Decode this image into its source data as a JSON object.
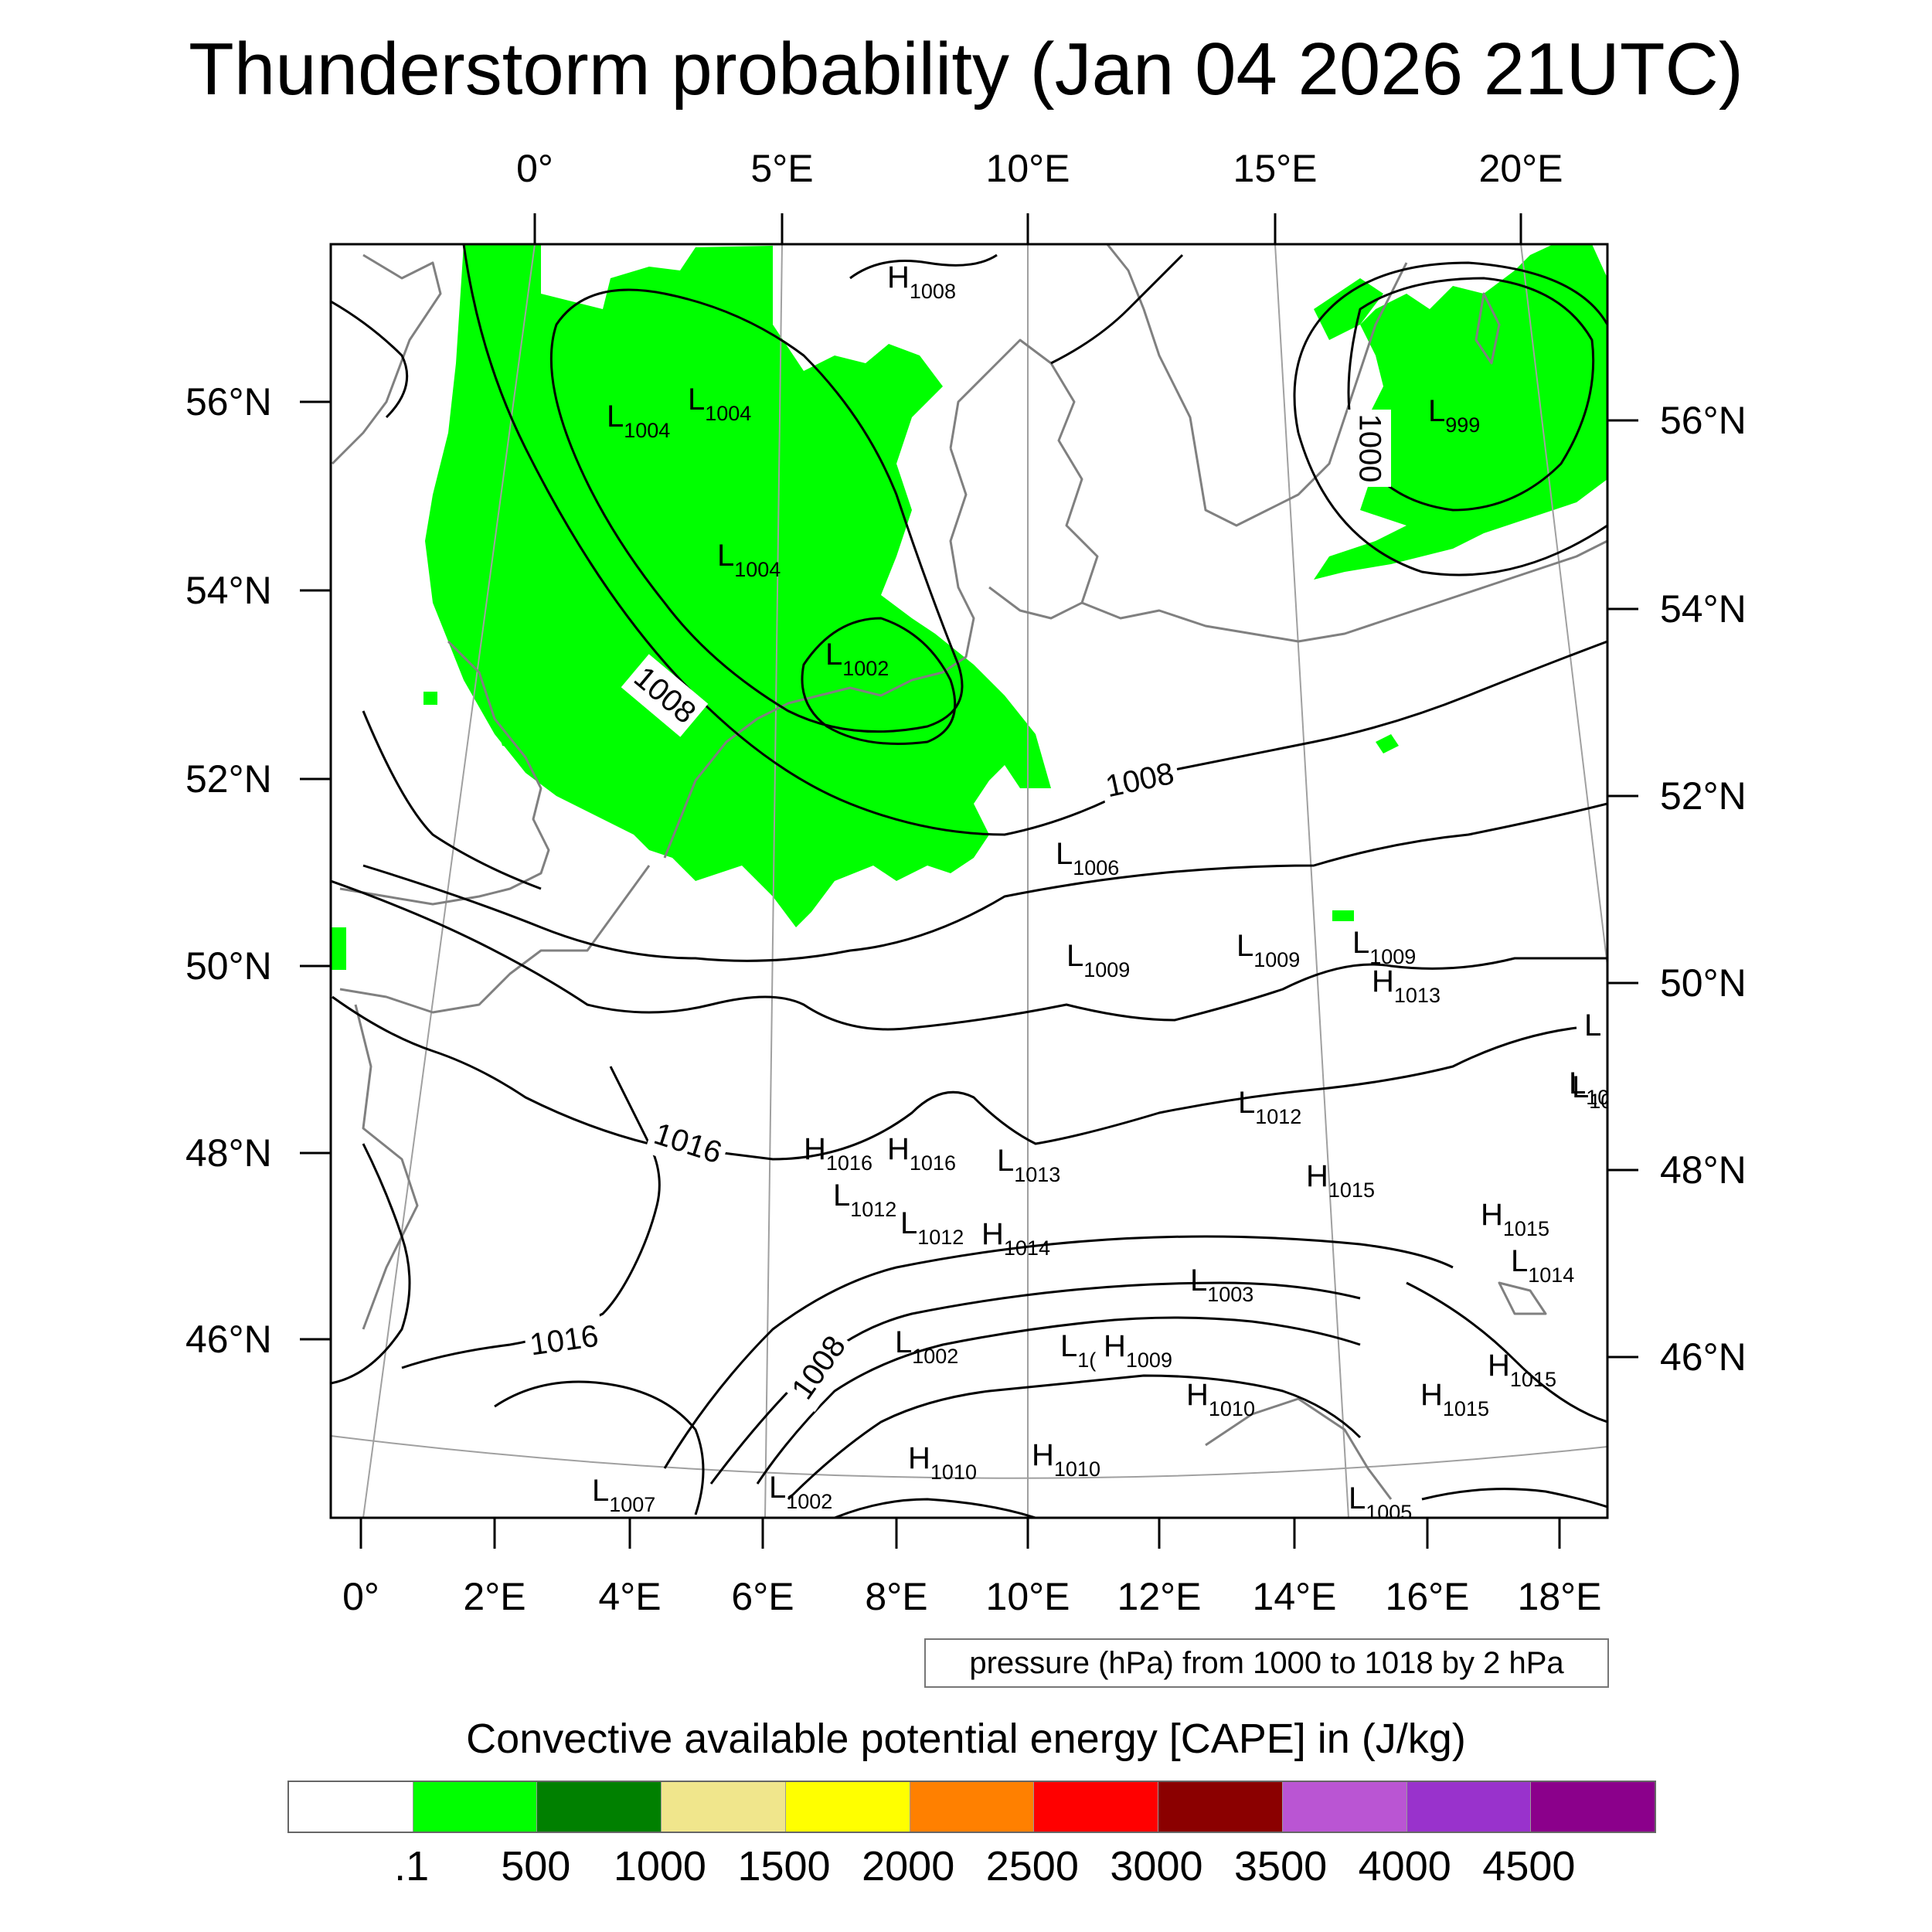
{
  "title": "Thunderstorm probability (Jan 04 2026 21UTC)",
  "axes": {
    "top_lon": [
      "0°",
      "5°E",
      "10°E",
      "15°E",
      "20°E"
    ],
    "bottom_lon": [
      "0°",
      "2°E",
      "4°E",
      "6°E",
      "8°E",
      "10°E",
      "12°E",
      "14°E",
      "16°E",
      "18°E"
    ],
    "left_lat": [
      "56°N",
      "54°N",
      "52°N",
      "50°N",
      "48°N",
      "46°N"
    ],
    "right_lat": [
      "56°N",
      "54°N",
      "52°N",
      "50°N",
      "48°N",
      "46°N"
    ]
  },
  "contour_info": "pressure (hPa) from 1000 to 1018 by 2 hPa",
  "isobar_labels": [
    "1008",
    "1008",
    "1000",
    "1016",
    "1016",
    "1008"
  ],
  "pressure_centers": [
    {
      "type": "H",
      "value": "1008"
    },
    {
      "type": "L",
      "value": "1004"
    },
    {
      "type": "L",
      "value": "1004"
    },
    {
      "type": "L",
      "value": "1004"
    },
    {
      "type": "L",
      "value": "1002"
    },
    {
      "type": "L",
      "value": "999"
    },
    {
      "type": "L",
      "value": "1006"
    },
    {
      "type": "L",
      "value": "1009"
    },
    {
      "type": "L",
      "value": "1009"
    },
    {
      "type": "L",
      "value": "1009"
    },
    {
      "type": "H",
      "value": "1013"
    },
    {
      "type": "L",
      "value": "1012"
    },
    {
      "type": "H",
      "value": "1016"
    },
    {
      "type": "H",
      "value": "1016"
    },
    {
      "type": "L",
      "value": "1013"
    },
    {
      "type": "H",
      "value": "1015"
    },
    {
      "type": "L",
      "value": "1012"
    },
    {
      "type": "L",
      "value": "1012"
    },
    {
      "type": "H",
      "value": "1014"
    },
    {
      "type": "H",
      "value": "1015"
    },
    {
      "type": "L",
      "value": "1014"
    },
    {
      "type": "L",
      "value": "1014"
    },
    {
      "type": "L",
      "value": "1003"
    },
    {
      "type": "L",
      "value": "1002"
    },
    {
      "type": "H",
      "value": "1009"
    },
    {
      "type": "H",
      "value": "1010"
    },
    {
      "type": "H",
      "value": "1015"
    },
    {
      "type": "H",
      "value": "1015"
    },
    {
      "type": "H",
      "value": "1010"
    },
    {
      "type": "H",
      "value": "1010"
    },
    {
      "type": "L",
      "value": "1007"
    },
    {
      "type": "L",
      "value": "1002"
    },
    {
      "type": "L",
      "value": "1005"
    },
    {
      "type": "L",
      "value": "1("
    },
    {
      "type": "L",
      "value": "10"
    },
    {
      "type": "L",
      "value": ""
    }
  ],
  "cape": {
    "title": "Convective available potential energy [CAPE] in (J/kg)",
    "colors": [
      "#ffffff",
      "#00ff00",
      "#008000",
      "#f0e68c",
      "#ffff00",
      "#ff8000",
      "#ff0000",
      "#8b0000",
      "#ba55d3",
      "#9932cc",
      "#8b008b"
    ],
    "labels": [
      ".1",
      "500",
      "1000",
      "1500",
      "2000",
      "2500",
      "3000",
      "3500",
      "4000",
      "4500"
    ]
  },
  "map_colors": {
    "cape_area": "#00ff00",
    "isobar": "#000000",
    "coastline": "#808080",
    "graticule": "#a0a0a0"
  }
}
